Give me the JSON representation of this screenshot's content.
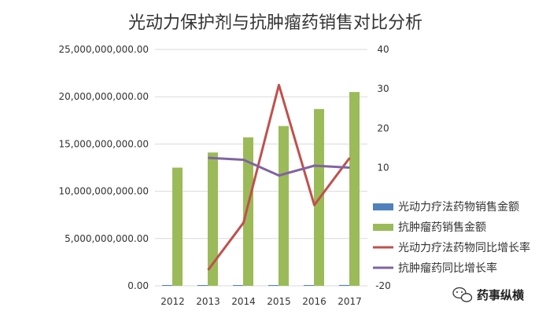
{
  "chart_data": {
    "type": "bar+line",
    "title": "光动力保护剂与抗肿瘤药销售对比分析",
    "categories": [
      "2012",
      "2013",
      "2014",
      "2015",
      "2016",
      "2017"
    ],
    "left_axis": {
      "min": 0,
      "max": 25000000000,
      "step": 5000000000,
      "tick_labels": [
        "0.00",
        "5,000,000,000.00",
        "10,000,000,000.00",
        "15,000,000,000.00",
        "20,000,000,000.00",
        "25,000,000,000.00"
      ]
    },
    "right_axis": {
      "min": -20,
      "max": 40,
      "step": 10,
      "tick_labels": [
        "-20",
        "-10",
        "0",
        "10",
        "20",
        "30",
        "40"
      ]
    },
    "grid": true,
    "legend_position": "right",
    "bar_series": [
      {
        "name": "光动力疗法药物销售金额",
        "color": "#4f81bd",
        "values": [
          40000000,
          50000000,
          60000000,
          80000000,
          70000000,
          90000000
        ]
      },
      {
        "name": "抗肿瘤药销售金额",
        "color": "#9bbb59",
        "values": [
          12500000000,
          14100000000,
          15700000000,
          16900000000,
          18700000000,
          20500000000
        ]
      }
    ],
    "line_series": [
      {
        "name": "光动力疗法药物同比增长率",
        "color": "#c0504d",
        "values": [
          null,
          -16,
          -4,
          31,
          0.5,
          12.5
        ]
      },
      {
        "name": "抗肿瘤药同比增长率",
        "color": "#8064a2",
        "values": [
          null,
          12.5,
          12,
          8,
          10.5,
          10
        ]
      }
    ]
  },
  "watermark": {
    "text": "药事纵横",
    "icon": "wechat-icon"
  }
}
